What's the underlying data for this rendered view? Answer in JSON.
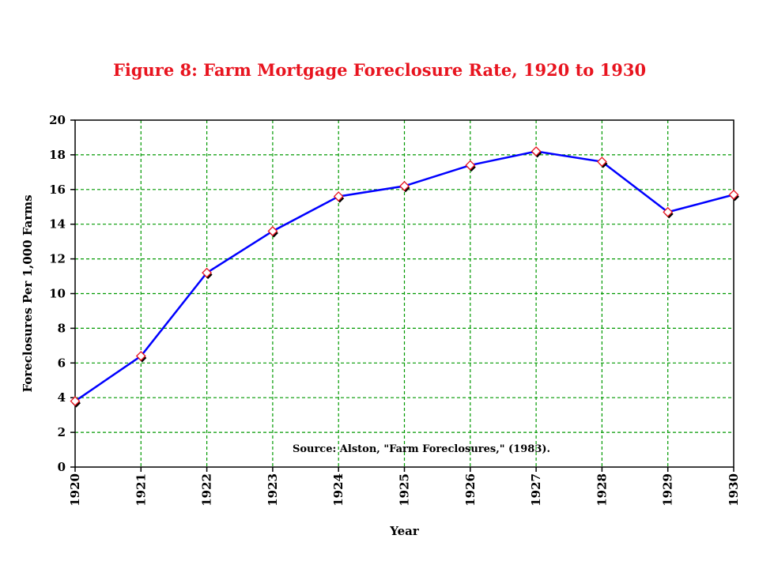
{
  "chart_data": {
    "type": "line",
    "title": "Figure 8: Farm Mortgage Foreclosure Rate, 1920 to 1930",
    "xlabel": "Year",
    "ylabel": "Foreclosures Per 1,000 Farms",
    "categories": [
      "1920",
      "1921",
      "1922",
      "1923",
      "1924",
      "1925",
      "1926",
      "1927",
      "1928",
      "1929",
      "1930"
    ],
    "series": [
      {
        "values": [
          3.8,
          6.4,
          11.2,
          13.6,
          15.6,
          16.2,
          17.4,
          18.2,
          17.6,
          14.7,
          15.7
        ]
      }
    ],
    "ylim": [
      0,
      20
    ],
    "yticks": [
      "0",
      "2",
      "4",
      "6",
      "8",
      "10",
      "12",
      "14",
      "16",
      "18",
      "20"
    ],
    "annotation": "Source: Alston, \"Farm Foreclosures,\" (1983).",
    "grid": true,
    "colors": {
      "title": "#e8141f",
      "line": "#0000ff",
      "grid": "#009900",
      "marker_fill": "#ffffff",
      "marker_stroke": "#e8141f",
      "marker_shadow": "#000000"
    }
  }
}
